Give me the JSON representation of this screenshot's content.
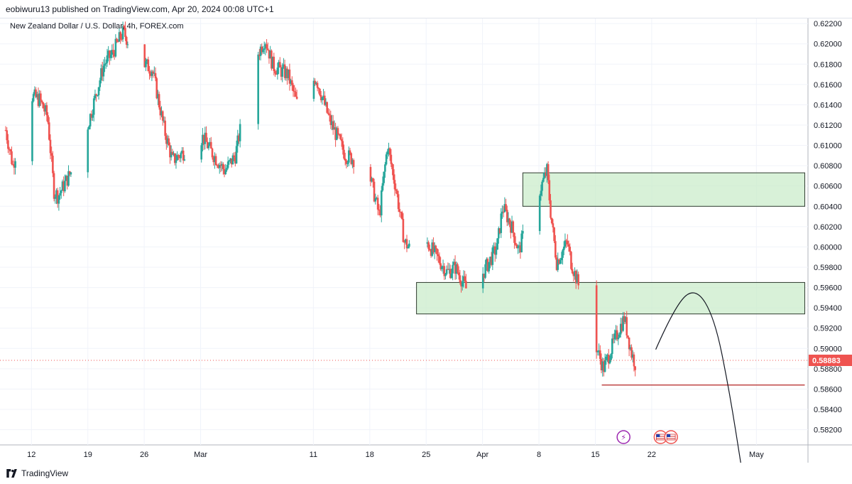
{
  "header": {
    "published_text": "eobiwuru13 published on TradingView.com, Apr 20, 2024 00:08 UTC+1"
  },
  "footer": {
    "brand": "TradingView"
  },
  "colors": {
    "up": "#26a69a",
    "down": "#ef5350",
    "zone_fill": "#c8ebc8",
    "zone_stroke": "#2e3b2e",
    "price_line": "#ef5350",
    "grid": "#f0f3fa",
    "axis_text": "#131722"
  },
  "chart_data": {
    "type": "candlestick",
    "title": "New Zealand Dollar / U.S. Dollar, 4h, FOREX.com",
    "ylim": [
      0.5805,
      0.6225
    ],
    "y_ticks": [
      "0.62200",
      "0.62000",
      "0.61800",
      "0.61600",
      "0.61400",
      "0.61200",
      "0.61000",
      "0.60800",
      "0.60600",
      "0.60400",
      "0.60200",
      "0.60000",
      "0.59800",
      "0.59600",
      "0.59400",
      "0.59200",
      "0.59000",
      "0.58800",
      "0.58600",
      "0.58400",
      "0.58200"
    ],
    "x_tick_labels": [
      "12",
      "19",
      "26",
      "Mar",
      "11",
      "18",
      "25",
      "Apr",
      "8",
      "15",
      "22",
      "May"
    ],
    "x_tick_days": [
      0,
      7,
      14,
      21,
      35,
      42,
      49,
      56,
      63,
      70,
      77,
      90
    ],
    "x_range_days": [
      -3.2,
      96.4
    ],
    "last_price": 0.58883,
    "last_price_label": "0.58883",
    "zones": [
      {
        "name": "upper-supply-zone",
        "day_start": 61.0,
        "day_end": 96.0,
        "low": 0.604,
        "high": 0.6073
      },
      {
        "name": "lower-supply-zone",
        "day_start": 47.8,
        "day_end": 96.0,
        "low": 0.5934,
        "high": 0.5965
      }
    ],
    "support_line": {
      "day_start": 70.8,
      "day_end": 96.0,
      "price": 0.5864
    },
    "projection": [
      [
        77.5,
        0.5899
      ],
      [
        80.0,
        0.5944
      ],
      [
        82.5,
        0.596
      ],
      [
        84.8,
        0.593
      ],
      [
        86.6,
        0.586
      ],
      [
        88.2,
        0.578
      ]
    ],
    "key_points": [
      [
        -3.2,
        0.6115
      ],
      [
        -2.3,
        0.608
      ],
      [
        -0.3,
        0.615
      ],
      [
        1.0,
        0.6145
      ],
      [
        2.0,
        0.6128
      ],
      [
        2.8,
        0.6055
      ],
      [
        3.3,
        0.605
      ],
      [
        6.0,
        0.609
      ],
      [
        7.5,
        0.6135
      ],
      [
        9.0,
        0.618
      ],
      [
        10.0,
        0.619
      ],
      [
        11.4,
        0.6212
      ],
      [
        12.5,
        0.6195
      ],
      [
        14.0,
        0.618
      ],
      [
        15.0,
        0.6175
      ],
      [
        16.5,
        0.6115
      ],
      [
        17.5,
        0.6085
      ],
      [
        21.3,
        0.6108
      ],
      [
        22.3,
        0.6094
      ],
      [
        24.0,
        0.6075
      ],
      [
        25.3,
        0.609
      ],
      [
        27.5,
        0.618
      ],
      [
        29.0,
        0.6205
      ],
      [
        30.0,
        0.6178
      ],
      [
        31.8,
        0.617
      ],
      [
        33.0,
        0.614
      ],
      [
        35.3,
        0.6167
      ],
      [
        37.0,
        0.6125
      ],
      [
        39.0,
        0.609
      ],
      [
        40.5,
        0.6085
      ],
      [
        42.0,
        0.607
      ],
      [
        43.2,
        0.603
      ],
      [
        43.6,
        0.606
      ],
      [
        44.2,
        0.61
      ],
      [
        45.3,
        0.6055
      ],
      [
        46.3,
        0.6005
      ],
      [
        47.5,
        0.5993
      ],
      [
        48.6,
        0.601
      ],
      [
        49.5,
        0.6
      ],
      [
        51.6,
        0.5975
      ],
      [
        52.6,
        0.598
      ],
      [
        53.6,
        0.5965
      ],
      [
        54.6,
        0.5948
      ],
      [
        55.4,
        0.5965
      ],
      [
        56.8,
        0.5985
      ],
      [
        57.8,
        0.6
      ],
      [
        58.5,
        0.604
      ],
      [
        59.6,
        0.602
      ],
      [
        60.5,
        0.5995
      ],
      [
        61.5,
        0.6025
      ],
      [
        62.5,
        0.6045
      ],
      [
        63.3,
        0.606
      ],
      [
        64.0,
        0.6075
      ],
      [
        64.5,
        0.603
      ],
      [
        65.2,
        0.5985
      ],
      [
        66.5,
        0.6005
      ],
      [
        67.0,
        0.5985
      ],
      [
        68.0,
        0.596
      ],
      [
        69.0,
        0.593
      ],
      [
        70.0,
        0.5905
      ],
      [
        71.0,
        0.588
      ],
      [
        72.0,
        0.59
      ],
      [
        73.0,
        0.592
      ],
      [
        73.6,
        0.593
      ],
      [
        74.5,
        0.5895
      ],
      [
        75.2,
        0.588
      ],
      [
        75.6,
        0.5889
      ]
    ],
    "events": [
      {
        "name": "lightning-event-icon",
        "day": 73.5,
        "glyph": "⚡"
      },
      {
        "name": "us-flag-event-icon",
        "day": 78.1,
        "glyph": ""
      },
      {
        "name": "us-flag-event-icon-2",
        "day": 79.4,
        "glyph": ""
      }
    ]
  }
}
